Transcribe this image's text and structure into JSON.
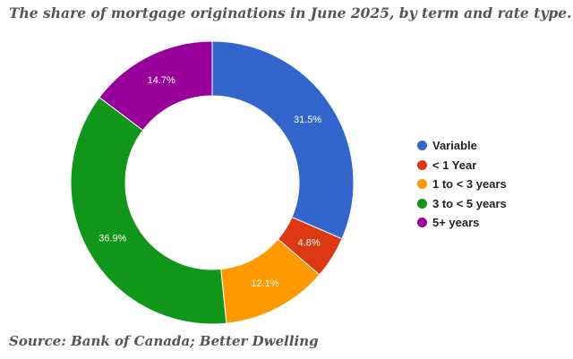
{
  "title": "The share of mortgage originations in June 2025, by term and rate type.",
  "source": "Source: Bank of Canada; Better Dwelling",
  "chart_data": {
    "type": "pie",
    "variant": "donut",
    "title": "The share of mortgage originations in June 2025, by term and rate type.",
    "legend_position": "right",
    "slices": [
      {
        "label": "Variable",
        "value": 31.5,
        "display": "31.5%",
        "color": "#3366cc"
      },
      {
        "label": "< 1 Year",
        "value": 4.8,
        "display": "4.8%",
        "color": "#dc3912"
      },
      {
        "label": "1 to < 3 years",
        "value": 12.1,
        "display": "12.1%",
        "color": "#ff9900"
      },
      {
        "label": "3 to < 5 years",
        "value": 36.9,
        "display": "36.9%",
        "color": "#109618"
      },
      {
        "label": "5+ years",
        "value": 14.7,
        "display": "14.7%",
        "color": "#990099"
      }
    ]
  }
}
